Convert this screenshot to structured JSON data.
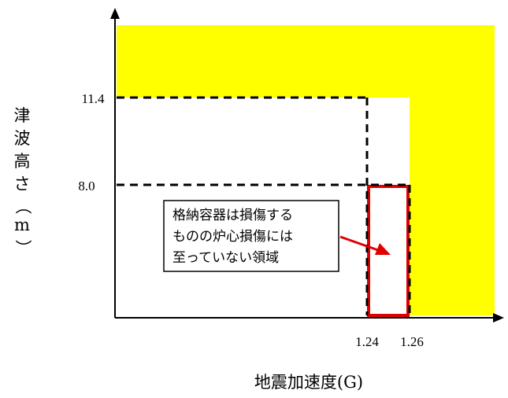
{
  "diagram": {
    "x_axis": {
      "label": "地震加速度(G)",
      "ticks": [
        "1.24",
        "1.26"
      ]
    },
    "y_axis": {
      "label_chars": [
        "津",
        "波",
        "高",
        "さ",
        "（",
        "m",
        "）"
      ],
      "ticks": [
        "11.4",
        "8.0"
      ]
    },
    "region_note": {
      "lines": [
        "格納容器は損傷する",
        "ものの炉心損傷には",
        "至っていない領域"
      ]
    },
    "colors": {
      "damage_region": "#ffff00",
      "highlight_box": "#e00000",
      "dashed_lines": "#000000"
    }
  }
}
